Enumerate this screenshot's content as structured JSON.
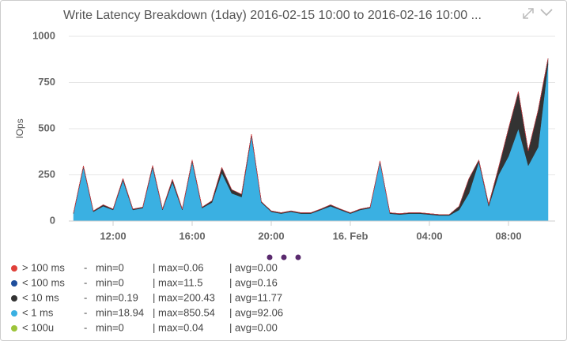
{
  "chart_data": {
    "type": "stacked_area",
    "title": "Write Latency Breakdown (1day) 2016-02-15 10:00 to 2016-02-16 10:00 ...",
    "y_label": "IOps",
    "ylim": [
      0,
      1000
    ],
    "yticks": [
      0,
      250,
      500,
      750,
      1000
    ],
    "grid": true,
    "xlim": [
      9.76,
      34.36
    ],
    "xticks": [
      {
        "value": 12,
        "label": "12:00"
      },
      {
        "value": 16,
        "label": "16:00"
      },
      {
        "value": 20,
        "label": "20:00"
      },
      {
        "value": 24,
        "label": "16. Feb"
      },
      {
        "value": 28,
        "label": "04:00"
      },
      {
        "value": 32,
        "label": "08:00"
      }
    ],
    "x": [
      10,
      10.5,
      11,
      11.5,
      12,
      12.5,
      13,
      13.5,
      14,
      14.5,
      15,
      15.5,
      16,
      16.5,
      17,
      17.5,
      18,
      18.5,
      19,
      19.5,
      20,
      20.5,
      21,
      21.5,
      22,
      22.5,
      23,
      23.5,
      24,
      24.5,
      25,
      25.5,
      26,
      26.5,
      27,
      27.5,
      28,
      28.5,
      29,
      29.5,
      30,
      30.5,
      31,
      31.5,
      32,
      32.5,
      33,
      33.5,
      34
    ],
    "series": [
      {
        "name": "> 100 ms",
        "color": "#e0403a",
        "stats": [
          "-",
          "min=0",
          "| max=0.06",
          "| avg=0.00"
        ],
        "values": [
          0,
          0,
          0,
          0,
          0,
          0,
          0,
          0,
          0,
          0,
          0,
          0,
          0,
          0,
          0,
          0,
          0,
          0,
          0,
          0,
          0,
          0,
          0,
          0,
          0,
          0,
          0,
          0,
          0,
          0,
          0,
          0,
          0,
          0,
          0,
          0,
          0,
          0,
          0,
          0,
          0,
          0,
          0,
          0,
          0,
          0,
          0,
          0,
          0
        ]
      },
      {
        "name": "< 100 ms",
        "color": "#1f4e9c",
        "stats": [
          "-",
          "min=0",
          "| max=11.5",
          "| avg=0.16"
        ],
        "values": [
          0,
          0,
          0,
          0,
          0,
          0,
          0,
          0,
          0,
          0,
          0,
          0,
          0,
          0,
          0,
          0,
          0,
          0,
          0,
          0,
          0,
          0,
          0,
          0,
          0,
          0,
          0,
          0,
          0,
          0,
          0,
          0,
          0,
          0,
          0,
          0,
          0,
          0,
          0,
          0,
          0,
          0,
          0,
          0,
          0,
          0,
          0,
          0,
          0
        ]
      },
      {
        "name": "< 10 ms",
        "color": "#333333",
        "stats": [
          "-",
          "min=0.19",
          "| max=200.43",
          "| avg=11.77"
        ],
        "values": [
          5,
          8,
          5,
          8,
          5,
          10,
          5,
          5,
          10,
          5,
          15,
          5,
          10,
          5,
          10,
          30,
          20,
          15,
          10,
          5,
          5,
          5,
          5,
          5,
          5,
          5,
          8,
          5,
          5,
          5,
          5,
          5,
          5,
          5,
          5,
          5,
          5,
          5,
          5,
          20,
          80,
          10,
          10,
          40,
          150,
          200,
          80,
          200,
          30
        ]
      },
      {
        "name": "< 1 ms",
        "color": "#3ab0e2",
        "stats": [
          "-",
          "min=18.94",
          "| max=850.54",
          "| avg=92.06"
        ],
        "values": [
          40,
          290,
          50,
          80,
          60,
          220,
          60,
          70,
          290,
          60,
          210,
          60,
          320,
          70,
          100,
          260,
          150,
          130,
          460,
          100,
          50,
          40,
          50,
          40,
          40,
          60,
          80,
          60,
          40,
          60,
          70,
          320,
          40,
          35,
          40,
          40,
          35,
          30,
          30,
          60,
          150,
          320,
          80,
          250,
          350,
          500,
          300,
          400,
          850
        ]
      },
      {
        "name": "< 100u",
        "color": "#9cc43a",
        "stats": [
          "-",
          "min=0",
          "| max=0.04",
          "| avg=0.00"
        ],
        "values": [
          0,
          0,
          0,
          0,
          0,
          0,
          0,
          0,
          0,
          0,
          0,
          0,
          0,
          0,
          0,
          0,
          0,
          0,
          0,
          0,
          0,
          0,
          0,
          0,
          0,
          0,
          0,
          0,
          0,
          0,
          0,
          0,
          0,
          0,
          0,
          0,
          0,
          0,
          0,
          0,
          0,
          0,
          0,
          0,
          0,
          0,
          0,
          0,
          0
        ]
      }
    ]
  }
}
